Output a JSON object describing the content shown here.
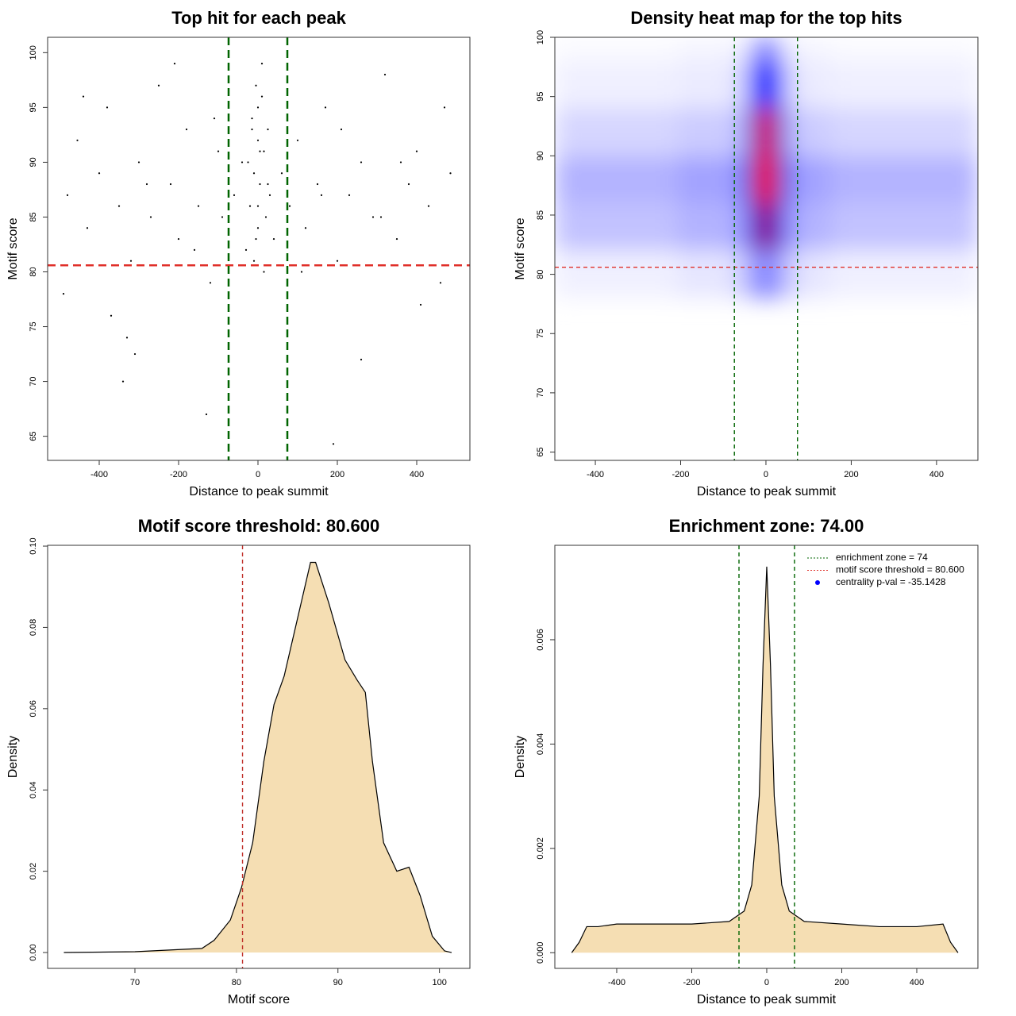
{
  "chart_data": [
    {
      "type": "scatter",
      "title": "Top hit for each peak",
      "xlabel": "Distance to peak summit",
      "ylabel": "Motif score",
      "color": "#000000",
      "x": [
        -480,
        -455,
        -430,
        -400,
        -380,
        -350,
        -320,
        -300,
        -270,
        -250,
        -220,
        -200,
        -180,
        -150,
        -120,
        -100,
        -90,
        -60,
        -40,
        -30,
        -20,
        -15,
        -10,
        -5,
        0,
        0,
        5,
        10,
        15,
        20,
        25,
        30,
        40,
        60,
        80,
        100,
        120,
        150,
        170,
        200,
        230,
        260,
        290,
        320,
        350,
        380,
        400,
        430,
        460,
        485,
        -490,
        -440,
        -370,
        -330,
        -280,
        -210,
        -160,
        -110,
        110,
        160,
        210,
        260,
        310,
        360,
        410,
        470,
        -340,
        -310,
        -130,
        190,
        -10,
        10,
        0,
        -25,
        25,
        -5,
        5,
        -15,
        15,
        0
      ],
      "values": [
        87,
        92,
        84,
        89,
        95,
        86,
        81,
        90,
        85,
        97,
        88,
        83,
        93,
        86,
        79,
        91,
        85,
        87,
        90,
        82,
        86,
        94,
        89,
        97,
        92,
        84,
        88,
        99,
        91,
        85,
        93,
        87,
        83,
        89,
        86,
        92,
        84,
        88,
        95,
        81,
        87,
        90,
        85,
        98,
        83,
        88,
        91,
        86,
        79,
        89,
        78,
        96,
        76,
        74,
        88,
        99,
        82,
        94,
        80,
        87,
        93,
        72,
        85,
        90,
        77,
        95,
        70,
        72.5,
        67,
        64.3,
        81,
        96,
        86,
        90,
        88,
        83,
        91,
        93,
        80,
        95
      ],
      "xlim": [
        -530,
        534
      ],
      "ylim": [
        62.8,
        101.4
      ],
      "xticks": [
        -400,
        -200,
        0,
        200,
        400
      ],
      "yticks": [
        65,
        70,
        75,
        80,
        85,
        90,
        95,
        100
      ],
      "hlines": [
        {
          "value": 80.6,
          "color": "#e0302a"
        }
      ],
      "vlines": [
        {
          "value": -74,
          "color": "#006400"
        },
        {
          "value": 74,
          "color": "#006400"
        }
      ]
    },
    {
      "type": "heatmap",
      "title": "Density heat map for the top hits",
      "xlabel": "Distance to peak summit",
      "ylabel": "Motif score",
      "xbins": [
        -495,
        -210,
        -75,
        -40,
        -20,
        20,
        40,
        75,
        155,
        497
      ],
      "ybins": [
        78,
        82,
        86,
        90,
        94,
        98,
        100
      ],
      "z": [
        [
          0.03,
          0.05,
          0.1,
          0.2,
          0.25,
          0.2,
          0.1,
          0.05,
          0.03
        ],
        [
          0.12,
          0.15,
          0.2,
          0.55,
          0.8,
          0.55,
          0.2,
          0.15,
          0.12
        ],
        [
          0.15,
          0.18,
          0.25,
          0.7,
          1.0,
          0.7,
          0.25,
          0.18,
          0.15
        ],
        [
          0.08,
          0.1,
          0.15,
          0.6,
          0.95,
          0.6,
          0.15,
          0.1,
          0.08
        ],
        [
          0.03,
          0.04,
          0.08,
          0.35,
          0.5,
          0.35,
          0.08,
          0.04,
          0.03
        ],
        [
          0.01,
          0.02,
          0.03,
          0.15,
          0.25,
          0.15,
          0.03,
          0.02,
          0.01
        ]
      ],
      "xlim": [
        -495,
        497
      ],
      "ylim": [
        64.3,
        100
      ],
      "xticks": [
        -400,
        -200,
        0,
        200,
        400
      ],
      "yticks": [
        65,
        70,
        75,
        80,
        85,
        90,
        95,
        100
      ],
      "hlines": [
        {
          "value": 80.6,
          "color": "#e0302a"
        }
      ],
      "vlines": [
        {
          "value": -74,
          "color": "#006400"
        },
        {
          "value": 74,
          "color": "#006400"
        }
      ]
    },
    {
      "type": "area",
      "title": "Motif score threshold: 80.600",
      "xlabel": "Motif score",
      "ylabel": "Density",
      "color": "#f5deb3",
      "x": [
        63,
        70,
        76.6,
        77.8,
        79.4,
        80.5,
        81.6,
        82.7,
        83.7,
        84.7,
        86,
        87.3,
        87.8,
        89.1,
        90.7,
        91.9,
        92.7,
        93.4,
        94.5,
        95.8,
        97,
        98.1,
        99.3,
        100.5,
        101.2
      ],
      "values": [
        0,
        0.0002,
        0.001,
        0.003,
        0.008,
        0.016,
        0.027,
        0.047,
        0.061,
        0.068,
        0.082,
        0.096,
        0.096,
        0.086,
        0.072,
        0.067,
        0.064,
        0.047,
        0.027,
        0.02,
        0.021,
        0.014,
        0.004,
        0.0004,
        0
      ],
      "xlim": [
        61.4,
        103
      ],
      "ylim": [
        -0.0039,
        0.1002
      ],
      "xticks": [
        70,
        80,
        90,
        100
      ],
      "yticks": [
        {
          "value": 0,
          "label": "0.00"
        },
        0.02,
        0.04,
        0.06,
        0.08,
        {
          "value": 0.1,
          "label": "0.10"
        }
      ],
      "vlines": [
        {
          "value": 80.6,
          "color": "#c0302a"
        }
      ]
    },
    {
      "type": "area",
      "title": "Enrichment zone: 74.00",
      "xlabel": "Distance to peak summit",
      "ylabel": "Density",
      "color": "#f5deb3",
      "x": [
        -520,
        -500,
        -480,
        -450,
        -400,
        -300,
        -200,
        -100,
        -60,
        -40,
        -20,
        -10,
        0,
        10,
        20,
        40,
        60,
        100,
        200,
        300,
        400,
        470,
        490,
        510
      ],
      "values": [
        0,
        0.0002,
        0.0005,
        0.0005,
        0.00055,
        0.00055,
        0.00055,
        0.0006,
        0.0008,
        0.0013,
        0.003,
        0.0055,
        0.0074,
        0.0055,
        0.003,
        0.0013,
        0.0008,
        0.0006,
        0.00055,
        0.0005,
        0.0005,
        0.00055,
        0.0002,
        0
      ],
      "xlim": [
        -565,
        563
      ],
      "ylim": [
        -0.0003,
        0.00781
      ],
      "xticks": [
        -400,
        -200,
        0,
        200,
        400
      ],
      "yticks": [
        {
          "value": 0,
          "label": "0.000"
        },
        0.002,
        0.004,
        0.006
      ],
      "vlines": [
        {
          "value": -74,
          "color": "#006400"
        },
        {
          "value": 74,
          "color": "#006400"
        }
      ],
      "legend_position": "topright",
      "legend": [
        {
          "label": "enrichment zone = 74",
          "color": "#006400",
          "style": "dotted"
        },
        {
          "label": "motif score threshold = 80.600",
          "color": "#e0302a",
          "style": "dotted"
        },
        {
          "label": "centrality p-val = -35.1428",
          "color": "#0000ff",
          "style": "point"
        }
      ]
    }
  ]
}
